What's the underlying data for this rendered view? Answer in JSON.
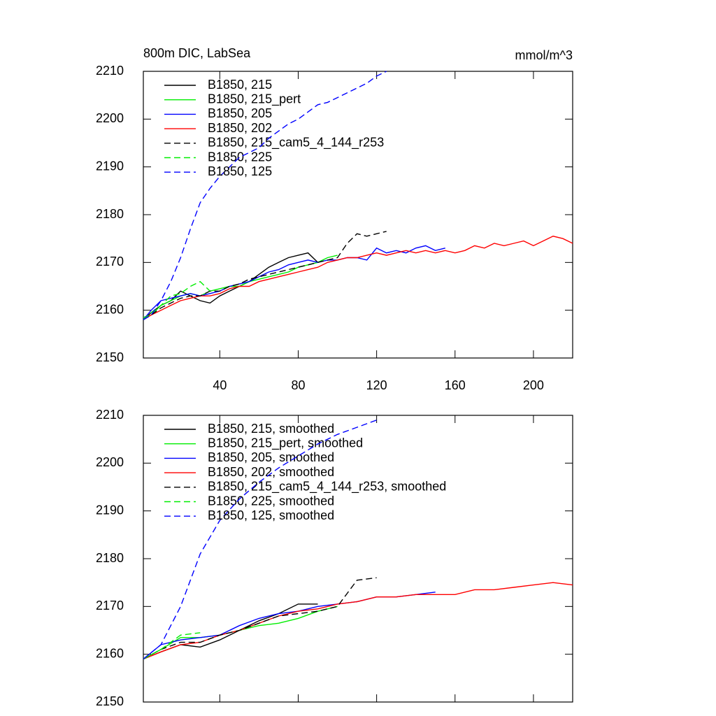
{
  "chart_data": [
    {
      "type": "line",
      "title": "800m DIC, LabSea",
      "units": "mmol/m^3",
      "x": [
        1,
        5,
        10,
        15,
        20,
        25,
        30,
        35,
        40,
        45,
        50,
        55,
        60,
        65,
        70,
        75,
        80,
        85,
        90,
        95,
        100,
        105,
        110,
        115,
        120,
        125,
        130,
        135,
        140,
        145,
        150,
        155,
        160,
        165,
        170,
        175,
        180,
        185,
        190,
        195,
        200,
        205,
        210,
        215,
        220
      ],
      "xlim": [
        1,
        220
      ],
      "xticks": [
        40,
        80,
        120,
        160,
        200
      ],
      "ylim": [
        2150,
        2210
      ],
      "yticks": [
        2150,
        2160,
        2170,
        2180,
        2190,
        2200,
        2210
      ],
      "legend": "top-left",
      "series": [
        {
          "name": "B1850, 215",
          "color": "#000000",
          "dashed": false,
          "values": [
            2158,
            2159.5,
            2161,
            2162,
            2164,
            2163,
            2162,
            2161.5,
            2163,
            2164,
            2165,
            2166,
            2167.5,
            2169,
            2170,
            2171,
            2171.5,
            2172,
            2170,
            null,
            null,
            null,
            null,
            null,
            null,
            null,
            null,
            null,
            null,
            null,
            null,
            null,
            null,
            null,
            null,
            null,
            null,
            null,
            null,
            null,
            null,
            null,
            null,
            null,
            null
          ]
        },
        {
          "name": "B1850, 215_pert",
          "color": "#00ee00",
          "dashed": false,
          "values": [
            2158.5,
            2159,
            2161,
            2162,
            2163,
            2163.5,
            2163,
            2164,
            2164.5,
            2165,
            2165,
            2166,
            2166.5,
            2167,
            2167.5,
            2168,
            2169,
            2169.5,
            2170,
            2171,
            2171.5,
            null,
            null,
            null,
            null,
            null,
            null,
            null,
            null,
            null,
            null,
            null,
            null,
            null,
            null,
            null,
            null,
            null,
            null,
            null,
            null,
            null,
            null,
            null,
            null
          ]
        },
        {
          "name": "B1850, 205",
          "color": "#0000ff",
          "dashed": false,
          "values": [
            2158,
            2160,
            2162,
            2162.5,
            2163,
            2163.5,
            2163,
            2163.5,
            2164,
            2165,
            2165.5,
            2166,
            2167,
            2168,
            2168.5,
            2169.5,
            2170,
            2170.5,
            2170,
            2170.5,
            2170.5,
            2171,
            2171,
            2170.5,
            2173,
            2172,
            2172.5,
            2172,
            2173,
            2173.5,
            2172.5,
            2173,
            null,
            null,
            null,
            null,
            null,
            null,
            null,
            null,
            null,
            null,
            null,
            null,
            null
          ]
        },
        {
          "name": "B1850, 202",
          "color": "#ff0000",
          "dashed": false,
          "values": [
            2158,
            2159,
            2160,
            2161,
            2162,
            2162.5,
            2163,
            2163,
            2163.5,
            2164.5,
            2165,
            2165,
            2166,
            2166.5,
            2167,
            2167.5,
            2168,
            2168.5,
            2169,
            2170,
            2170.5,
            2171,
            2171,
            2171.5,
            2172,
            2171.5,
            2172,
            2172.5,
            2172,
            2172.5,
            2172,
            2172.5,
            2172,
            2172.5,
            2173.5,
            2173,
            2174,
            2173.5,
            2174,
            2174.5,
            2173.5,
            2174.5,
            2175.5,
            2175,
            2174
          ]
        },
        {
          "name": "B1850, 215_cam5_4_144_r253",
          "color": "#000000",
          "dashed": true,
          "values": [
            2158,
            2159,
            2160.5,
            2161.5,
            2162.5,
            2163,
            2163,
            2164,
            2164,
            2165,
            2165.5,
            2166.5,
            2167,
            2167.5,
            2168,
            2168.5,
            2169,
            2169.5,
            2170,
            2170.5,
            2171,
            2174,
            2176,
            2175.5,
            2176,
            2176.5,
            null,
            null,
            null,
            null,
            null,
            null,
            null,
            null,
            null,
            null,
            null,
            null,
            null,
            null,
            null,
            null,
            null,
            null,
            null
          ]
        },
        {
          "name": "B1850, 225",
          "color": "#00ee00",
          "dashed": true,
          "values": [
            2158,
            2159.5,
            2161,
            2163,
            2163.5,
            2165,
            2166,
            2164,
            null,
            null,
            null,
            null,
            null,
            null,
            null,
            null,
            null,
            null,
            null,
            null,
            null,
            null,
            null,
            null,
            null,
            null,
            null,
            null,
            null,
            null,
            null,
            null,
            null,
            null,
            null,
            null,
            null,
            null,
            null,
            null,
            null,
            null,
            null,
            null,
            null
          ]
        },
        {
          "name": "B1850, 125",
          "color": "#0000ff",
          "dashed": true,
          "values": [
            2158,
            2159,
            2162,
            2166,
            2171,
            2177,
            2182.5,
            2185.5,
            2188,
            2190,
            2192,
            2193,
            2194,
            2196,
            2197.5,
            2199,
            2200,
            2201.5,
            2203,
            2203.5,
            2204.5,
            2205.5,
            2206.5,
            2207.5,
            2209,
            2210,
            null,
            null,
            null,
            null,
            null,
            null,
            null,
            null,
            null,
            null,
            null,
            null,
            null,
            null,
            null,
            null,
            null,
            null,
            null
          ]
        }
      ]
    },
    {
      "type": "line",
      "x": [
        1,
        10,
        20,
        30,
        40,
        50,
        60,
        70,
        80,
        90,
        100,
        110,
        120,
        130,
        140,
        150,
        160,
        170,
        180,
        190,
        200,
        210,
        220
      ],
      "xlim": [
        1,
        220
      ],
      "xticks": [
        40,
        80,
        120,
        160,
        200
      ],
      "ylim": [
        2150,
        2210
      ],
      "yticks": [
        2150,
        2160,
        2170,
        2180,
        2190,
        2200,
        2210
      ],
      "legend": "top-left",
      "series": [
        {
          "name": "B1850, 215, smoothed",
          "color": "#000000",
          "dashed": false,
          "values": [
            2159,
            2160.5,
            2162,
            2161.5,
            2163,
            2165,
            2167,
            2168.5,
            2170.5,
            2170.5,
            null,
            null,
            null,
            null,
            null,
            null,
            null,
            null,
            null,
            null,
            null,
            null,
            null
          ]
        },
        {
          "name": "B1850, 215_pert, smoothed",
          "color": "#00ee00",
          "dashed": false,
          "values": [
            2159,
            2161,
            2163.5,
            2163.5,
            2164,
            2165,
            2166,
            2166.5,
            2167.5,
            2169,
            2170,
            null,
            null,
            null,
            null,
            null,
            null,
            null,
            null,
            null,
            null,
            null,
            null
          ]
        },
        {
          "name": "B1850, 205, smoothed",
          "color": "#0000ff",
          "dashed": false,
          "values": [
            2159,
            2162,
            2163,
            2163.5,
            2164,
            2166,
            2167.5,
            2168.5,
            2169,
            2170,
            2170.5,
            2171,
            2172,
            2172,
            2172.5,
            2173,
            null,
            null,
            null,
            null,
            null,
            null,
            null
          ]
        },
        {
          "name": "B1850, 202, smoothed",
          "color": "#ff0000",
          "dashed": false,
          "values": [
            2159,
            2160.5,
            2162,
            2162.5,
            2164,
            2165,
            2166.5,
            2168,
            2169,
            2169.5,
            2170.5,
            2171,
            2172,
            2172,
            2172.5,
            2172.5,
            2172.5,
            2173.5,
            2173.5,
            2174,
            2174.5,
            2175,
            2174.5
          ]
        },
        {
          "name": "B1850, 215_cam5_4_144_r253, smoothed",
          "color": "#000000",
          "dashed": true,
          "values": [
            2159,
            2161,
            2162.5,
            2162.5,
            2164,
            2165,
            2166.5,
            2168,
            2168.5,
            2169,
            2170,
            2175.5,
            2176,
            null,
            null,
            null,
            null,
            null,
            null,
            null,
            null,
            null,
            null
          ]
        },
        {
          "name": "B1850, 225, smoothed",
          "color": "#00ee00",
          "dashed": true,
          "values": [
            2159,
            2161,
            2164,
            2164.5,
            null,
            null,
            null,
            null,
            null,
            null,
            null,
            null,
            null,
            null,
            null,
            null,
            null,
            null,
            null,
            null,
            null,
            null,
            null
          ]
        },
        {
          "name": "B1850, 125, smoothed",
          "color": "#0000ff",
          "dashed": true,
          "values": [
            2159,
            2162,
            2170,
            2181,
            2188,
            2192.5,
            2196,
            2199,
            2201.5,
            2204,
            2206,
            2207.5,
            2209,
            null,
            null,
            null,
            null,
            null,
            null,
            null,
            null,
            null,
            null
          ]
        }
      ]
    }
  ]
}
